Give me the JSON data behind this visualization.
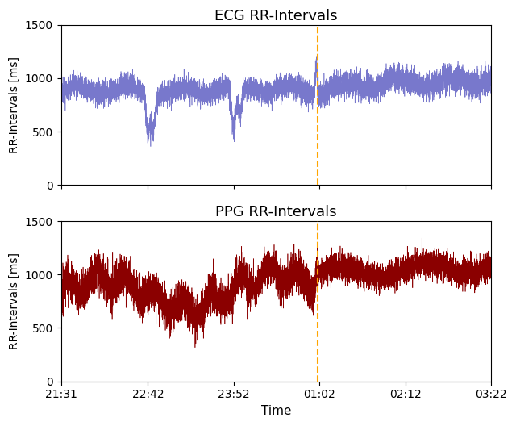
{
  "ecg_title": "ECG RR-Intervals",
  "ppg_title": "PPG RR-Intervals",
  "ylabel": "RR-Intervals [ms]",
  "xlabel": "Time",
  "ylim": [
    0,
    1500
  ],
  "yticks": [
    0,
    500,
    1000,
    1500
  ],
  "x_tick_labels": [
    "21:31",
    "22:42",
    "23:52",
    "01:02",
    "02:12",
    "03:22"
  ],
  "vline_color": "#FFA500",
  "ecg_color": "#7878CC",
  "ppg_color": "#8B0000",
  "seed": 1234,
  "n_points": 8000,
  "background_color": "#ffffff"
}
